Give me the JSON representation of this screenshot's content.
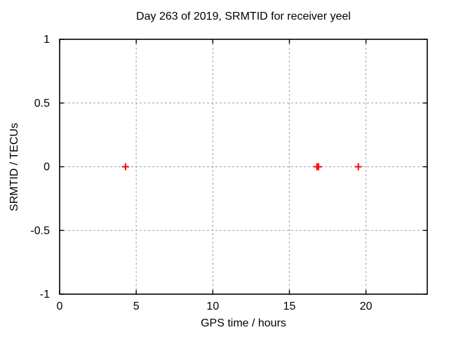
{
  "chart_data": {
    "type": "scatter",
    "title": "Day 263 of 2019, SRMTID for receiver yeel",
    "xlabel": "GPS time / hours",
    "ylabel": "SRMTID / TECUs",
    "xlim": [
      0,
      24
    ],
    "ylim": [
      -1,
      1
    ],
    "x_ticks": [
      0,
      5,
      10,
      15,
      20
    ],
    "y_ticks": [
      -1,
      -0.5,
      0,
      0.5,
      1
    ],
    "grid": "dashed",
    "legend": "none",
    "colors": {
      "marker": "#ff0000",
      "grid": "#a0a0a0",
      "border": "#000000",
      "background": "#ffffff"
    },
    "marker": {
      "shape": "plus",
      "size": 10
    },
    "series": [
      {
        "name": "SRMTID",
        "points": [
          {
            "x": 4.3,
            "y": 0
          },
          {
            "x": 16.8,
            "y": 0
          },
          {
            "x": 16.9,
            "y": 0
          },
          {
            "x": 19.5,
            "y": 0
          }
        ]
      }
    ]
  }
}
